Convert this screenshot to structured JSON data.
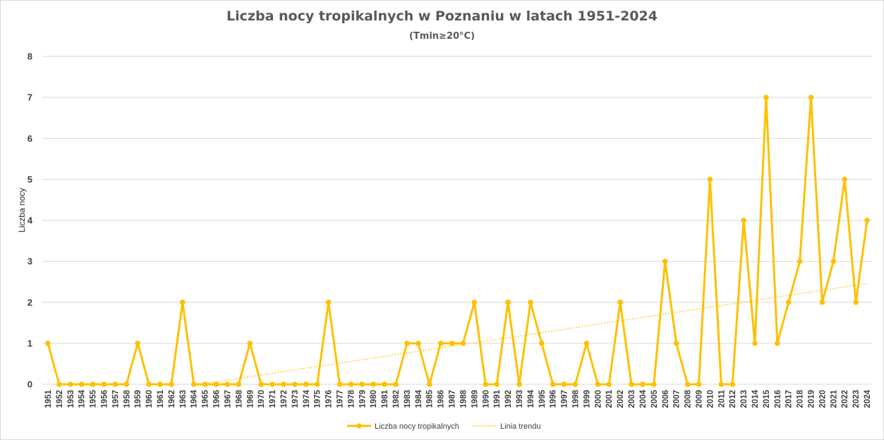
{
  "chart_data": {
    "type": "line",
    "title": "Liczba nocy tropikalnych w Poznaniu w latach 1951-2024",
    "subtitle": "(Tmin≥20°C)",
    "xlabel": "",
    "ylabel": "Liczba nocy",
    "ylim": [
      0,
      8
    ],
    "yticks": [
      0,
      1,
      2,
      3,
      4,
      5,
      6,
      7,
      8
    ],
    "grid": true,
    "legend_position": "bottom",
    "categories": [
      "1951",
      "1952",
      "1953",
      "1954",
      "1955",
      "1956",
      "1957",
      "1958",
      "1959",
      "1960",
      "1961",
      "1962",
      "1963",
      "1964",
      "1965",
      "1966",
      "1967",
      "1968",
      "1969",
      "1970",
      "1971",
      "1972",
      "1973",
      "1974",
      "1975",
      "1976",
      "1977",
      "1978",
      "1979",
      "1980",
      "1981",
      "1982",
      "1983",
      "1984",
      "1985",
      "1986",
      "1987",
      "1988",
      "1989",
      "1990",
      "1991",
      "1992",
      "1993",
      "1994",
      "1995",
      "1996",
      "1997",
      "1998",
      "1999",
      "2000",
      "2001",
      "2002",
      "2003",
      "2004",
      "2005",
      "2006",
      "2007",
      "2008",
      "2009",
      "2010",
      "2011",
      "2012",
      "2013",
      "2014",
      "2015",
      "2016",
      "2017",
      "2018",
      "2019",
      "2020",
      "2021",
      "2022",
      "2023",
      "2024"
    ],
    "series": [
      {
        "name": "Liczba nocy tropikalnych",
        "color": "#FFC000",
        "style": "solid-markers",
        "values": [
          1,
          0,
          0,
          0,
          0,
          0,
          0,
          0,
          1,
          0,
          0,
          0,
          2,
          0,
          0,
          0,
          0,
          0,
          1,
          0,
          0,
          0,
          0,
          0,
          0,
          2,
          0,
          0,
          0,
          0,
          0,
          0,
          1,
          1,
          0,
          1,
          1,
          1,
          2,
          0,
          0,
          2,
          0,
          2,
          1,
          0,
          0,
          0,
          1,
          0,
          0,
          2,
          0,
          0,
          0,
          3,
          1,
          0,
          0,
          5,
          0,
          0,
          4,
          1,
          7,
          1,
          2,
          3,
          7,
          2,
          3,
          5,
          2,
          4
        ]
      }
    ],
    "trendline": {
      "name": "Linia trendu",
      "color": "#FFC000",
      "style": "dotted",
      "start_category": "1965",
      "end_category": "2024",
      "start_value": 0.02,
      "end_value": 2.46
    }
  }
}
